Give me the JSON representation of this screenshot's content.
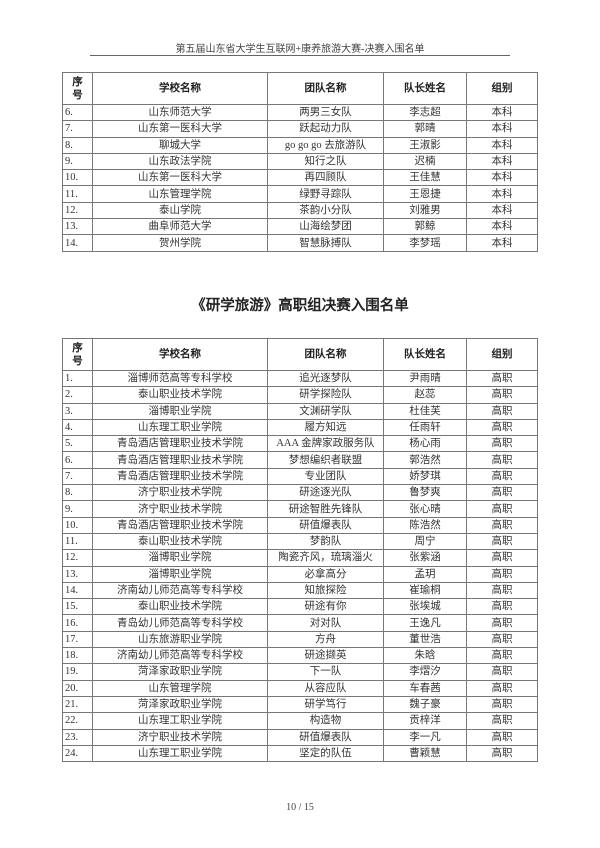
{
  "header": {
    "running_title": "第五届山东省大学生互联网+康养旅游大赛-决赛入围名单"
  },
  "columns": [
    "序号",
    "学校名称",
    "团队名称",
    "队长姓名",
    "组别"
  ],
  "table1": {
    "rows": [
      [
        "6.",
        "山东师范大学",
        "两男三女队",
        "李志超",
        "本科"
      ],
      [
        "7.",
        "山东第一医科大学",
        "跃起动力队",
        "郭晴",
        "本科"
      ],
      [
        "8.",
        "聊城大学",
        "go go go 去旅游队",
        "王淑影",
        "本科"
      ],
      [
        "9.",
        "山东政法学院",
        "知行之队",
        "迟楠",
        "本科"
      ],
      [
        "10.",
        "山东第一医科大学",
        "再四顾队",
        "王佳慧",
        "本科"
      ],
      [
        "11.",
        "山东管理学院",
        "绿野寻踪队",
        "王恩捷",
        "本科"
      ],
      [
        "12.",
        "泰山学院",
        "茶韵小分队",
        "刘雅男",
        "本科"
      ],
      [
        "13.",
        "曲阜师范大学",
        "山海绘梦团",
        "郭鲸",
        "本科"
      ],
      [
        "14.",
        "贺州学院",
        "智慧脉搏队",
        "李梦瑶",
        "本科"
      ]
    ]
  },
  "section2": {
    "title": "《研学旅游》高职组决赛入围名单"
  },
  "table2": {
    "rows": [
      [
        "1.",
        "淄博师范高等专科学校",
        "追光逐梦队",
        "尹雨晴",
        "高职"
      ],
      [
        "2.",
        "泰山职业技术学院",
        "研学探险队",
        "赵蕊",
        "高职"
      ],
      [
        "3.",
        "淄博职业学院",
        "文渊研学队",
        "杜佳芙",
        "高职"
      ],
      [
        "4.",
        "山东理工职业学院",
        "履方知远",
        "任雨轩",
        "高职"
      ],
      [
        "5.",
        "青岛酒店管理职业技术学院",
        "AAA 金牌家政服务队",
        "杨心雨",
        "高职"
      ],
      [
        "6.",
        "青岛酒店管理职业技术学院",
        "梦想编织者联盟",
        "郭浩然",
        "高职"
      ],
      [
        "7.",
        "青岛酒店管理职业技术学院",
        "专业团队",
        "娇梦琪",
        "高职"
      ],
      [
        "8.",
        "济宁职业技术学院",
        "研途逐光队",
        "鲁梦爽",
        "高职"
      ],
      [
        "9.",
        "济宁职业技术学院",
        "研途智胜先锋队",
        "张心晴",
        "高职"
      ],
      [
        "10.",
        "青岛酒店管理职业技术学院",
        "研值爆表队",
        "陈浩然",
        "高职"
      ],
      [
        "11.",
        "泰山职业技术学院",
        "梦韵队",
        "周宁",
        "高职"
      ],
      [
        "12.",
        "淄博职业学院",
        "陶瓷齐风，琉璃淄火",
        "张紫涵",
        "高职"
      ],
      [
        "13.",
        "淄博职业学院",
        "必拿高分",
        "孟玥",
        "高职"
      ],
      [
        "14.",
        "济南幼儿师范高等专科学校",
        "知旅探险",
        "崔瑜桐",
        "高职"
      ],
      [
        "15.",
        "泰山职业技术学院",
        "研途有你",
        "张埃城",
        "高职"
      ],
      [
        "16.",
        "青岛幼儿师范高等专科学校",
        "对对队",
        "王逸凡",
        "高职"
      ],
      [
        "17.",
        "山东旅游职业学院",
        "方舟",
        "董世浩",
        "高职"
      ],
      [
        "18.",
        "济南幼儿师范高等专科学校",
        "研途撷英",
        "朱晗",
        "高职"
      ],
      [
        "19.",
        "菏泽家政职业学院",
        "下一队",
        "李熠汐",
        "高职"
      ],
      [
        "20.",
        "山东管理学院",
        "从容应队",
        "车春茜",
        "高职"
      ],
      [
        "21.",
        "菏泽家政职业学院",
        "研学笃行",
        "魏子豪",
        "高职"
      ],
      [
        "22.",
        "山东理工职业学院",
        "构造物",
        "贡梓洋",
        "高职"
      ],
      [
        "23.",
        "济宁职业技术学院",
        "研值爆表队",
        "李一凡",
        "高职"
      ],
      [
        "24.",
        "山东理工职业学院",
        "坚定的队伍",
        "曹颖慧",
        "高职"
      ]
    ]
  },
  "footer": {
    "page_number": "10 / 15"
  }
}
